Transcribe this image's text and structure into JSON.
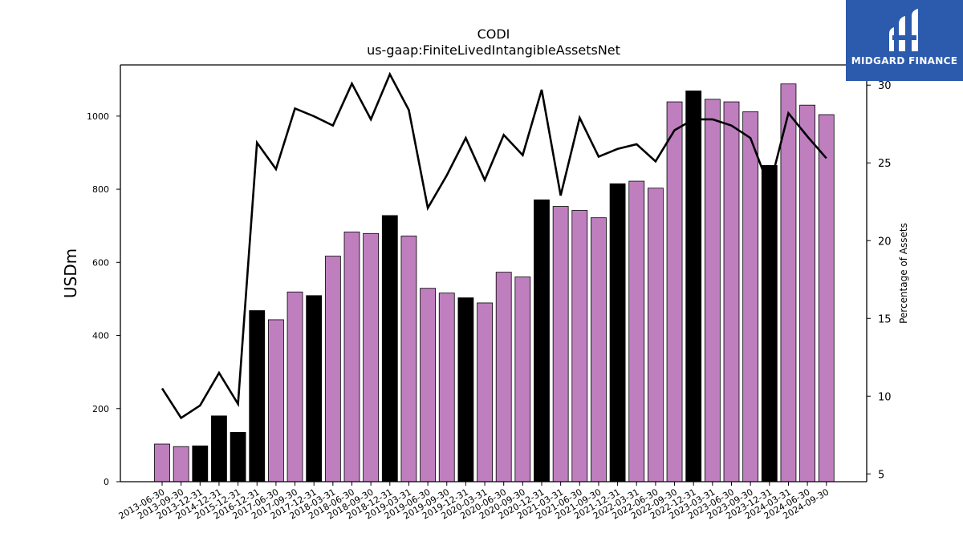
{
  "chart_data": {
    "type": "bar",
    "title": "CODI",
    "subtitle": "us-gaap:FiniteLivedIntangibleAssetsNet",
    "ylabel": "USDm",
    "y2label": "Percentage of Assets",
    "ylim": [
      0,
      1140
    ],
    "y2lim": [
      4.5,
      31.3
    ],
    "yticks": [
      0,
      200,
      400,
      600,
      800,
      1000
    ],
    "y2ticks": [
      5,
      10,
      15,
      20,
      25,
      30
    ],
    "categories": [
      "2013-06-30",
      "2013-09-30",
      "2013-12-31",
      "2014-12-31",
      "2015-12-31",
      "2016-12-31",
      "2017-06-30",
      "2017-09-30",
      "2017-12-31",
      "2018-03-31",
      "2018-06-30",
      "2018-09-30",
      "2018-12-31",
      "2019-03-31",
      "2019-06-30",
      "2019-09-30",
      "2019-12-31",
      "2020-03-31",
      "2020-06-30",
      "2020-09-30",
      "2020-12-31",
      "2021-03-31",
      "2021-06-30",
      "2021-09-30",
      "2021-12-31",
      "2022-03-31",
      "2022-06-30",
      "2022-09-30",
      "2022-12-31",
      "2023-03-31",
      "2023-06-30",
      "2023-09-30",
      "2023-12-31",
      "2024-03-31",
      "2024-06-30",
      "2024-09-30"
    ],
    "series": [
      {
        "type": "bar",
        "values": [
          103,
          96,
          98,
          180,
          135,
          468,
          443,
          519,
          509,
          617,
          683,
          679,
          728,
          672,
          529,
          516,
          503,
          489,
          573,
          560,
          771,
          753,
          742,
          722,
          815,
          822,
          803,
          1039,
          1069,
          1046,
          1039,
          1012,
          865,
          1088,
          1030,
          1004
        ],
        "year_end": [
          false,
          false,
          true,
          true,
          true,
          true,
          false,
          false,
          true,
          false,
          false,
          false,
          true,
          false,
          false,
          false,
          true,
          false,
          false,
          false,
          true,
          false,
          false,
          false,
          true,
          false,
          false,
          false,
          true,
          false,
          false,
          false,
          true,
          false,
          false,
          false
        ]
      },
      {
        "type": "line",
        "axis": "right",
        "values": [
          10.5,
          8.6,
          9.4,
          11.5,
          9.5,
          26.3,
          24.6,
          28.5,
          28.0,
          27.4,
          30.1,
          27.8,
          30.7,
          28.4,
          22.1,
          24.2,
          26.6,
          23.9,
          26.8,
          25.5,
          29.7,
          22.9,
          27.9,
          25.4,
          25.9,
          26.2,
          25.1,
          27.1,
          27.8,
          27.8,
          27.4,
          26.6,
          23.4,
          28.2,
          26.7,
          25.3
        ]
      }
    ],
    "colors": {
      "bar": "#bf7fbf",
      "bar_year_end": "#000000",
      "line": "#000000"
    },
    "grid": false,
    "legend": "none"
  },
  "logo": {
    "text": "MIDGARD FINANCE",
    "color": "#2c5aad"
  }
}
